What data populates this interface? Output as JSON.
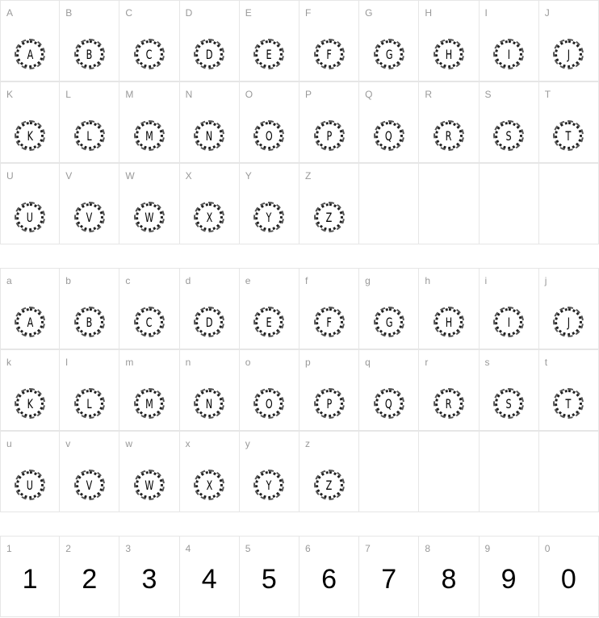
{
  "uppercase": [
    "A",
    "B",
    "C",
    "D",
    "E",
    "F",
    "G",
    "H",
    "I",
    "J",
    "K",
    "L",
    "M",
    "N",
    "O",
    "P",
    "Q",
    "R",
    "S",
    "T",
    "U",
    "V",
    "W",
    "X",
    "Y",
    "Z"
  ],
  "lowercase_labels": [
    "a",
    "b",
    "c",
    "d",
    "e",
    "f",
    "g",
    "h",
    "i",
    "j",
    "k",
    "l",
    "m",
    "n",
    "o",
    "p",
    "q",
    "r",
    "s",
    "t",
    "u",
    "v",
    "w",
    "x",
    "y",
    "z"
  ],
  "lowercase_glyphs": [
    "A",
    "B",
    "C",
    "D",
    "E",
    "F",
    "G",
    "H",
    "I",
    "J",
    "K",
    "L",
    "M",
    "N",
    "O",
    "P",
    "Q",
    "R",
    "S",
    "T",
    "U",
    "V",
    "W",
    "X",
    "Y",
    "Z"
  ],
  "digits": [
    "1",
    "2",
    "3",
    "4",
    "5",
    "6",
    "7",
    "8",
    "9",
    "0"
  ]
}
